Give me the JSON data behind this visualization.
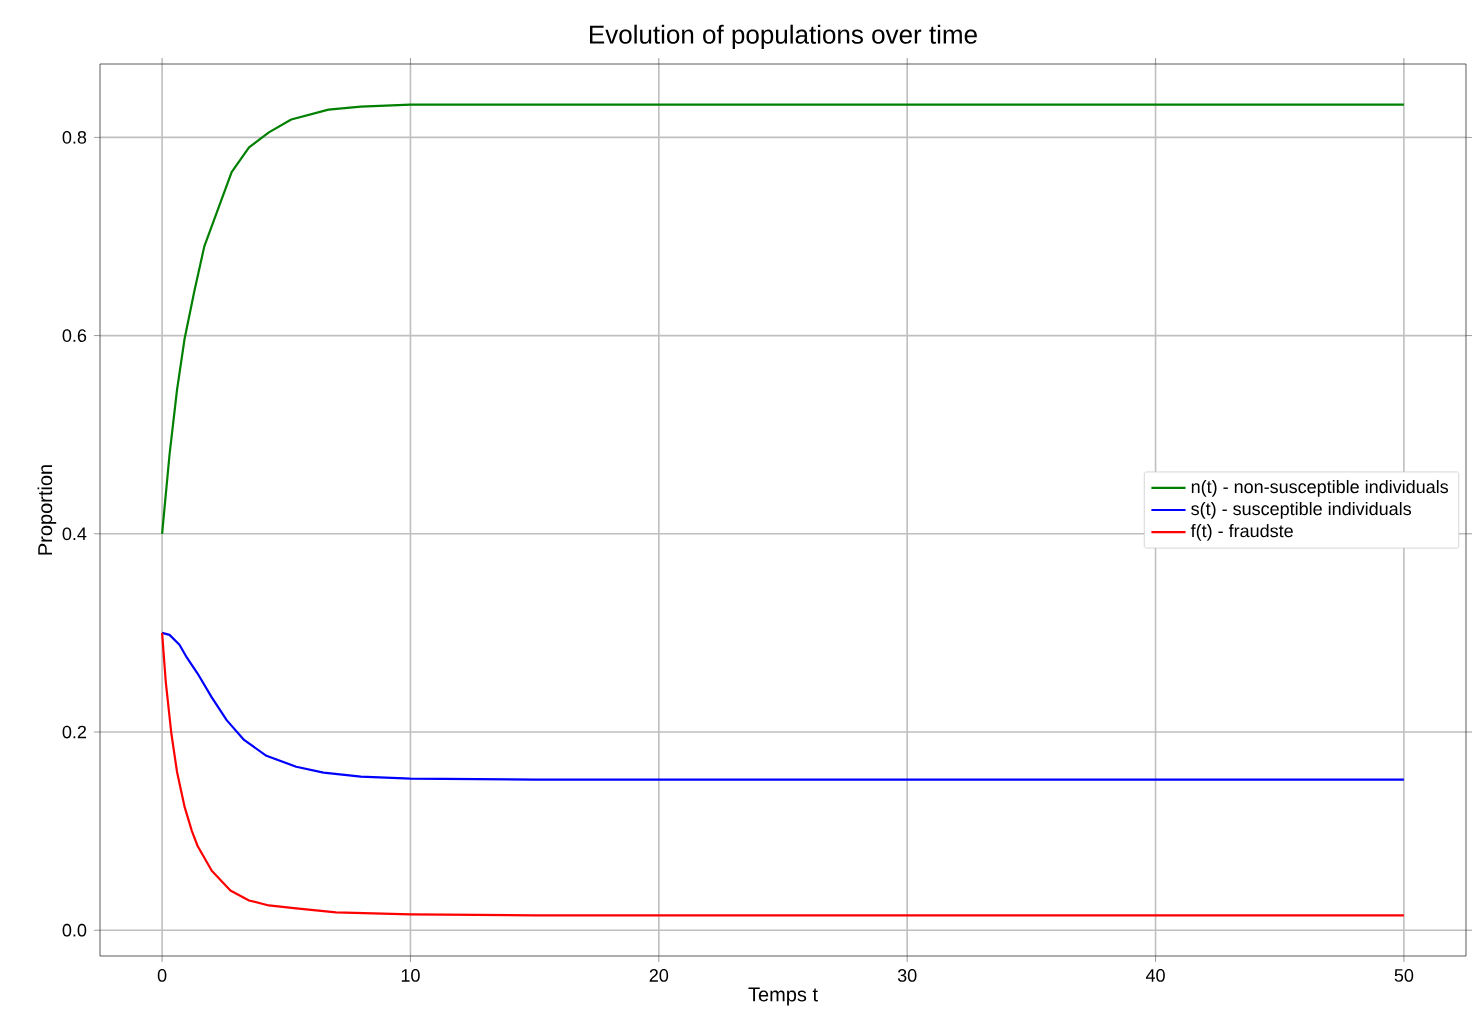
{
  "chart_data": {
    "type": "line",
    "title": "Evolution of populations over time",
    "xlabel": "Temps t",
    "ylabel": "Proportion",
    "xlim": [
      -2.5,
      52.5
    ],
    "ylim": [
      -0.026,
      0.874
    ],
    "xticks": [
      0,
      10,
      20,
      30,
      40,
      50
    ],
    "yticks": [
      {
        "value": 0,
        "label": "0.0"
      },
      0.2,
      0.4,
      0.6,
      0.8
    ],
    "grid": true,
    "legend": "right",
    "marker": "none",
    "line_style": "solid",
    "series": [
      {
        "name": "n(t) - non-susceptible  individuals",
        "color": "#008000",
        "x": [
          0,
          0.3,
          0.6,
          0.9,
          1.3,
          1.7,
          2.2,
          2.8,
          3.5,
          4.3,
          5.2,
          6.7,
          8,
          10,
          15,
          20,
          30,
          40,
          50
        ],
        "values": [
          0.4,
          0.48,
          0.545,
          0.596,
          0.645,
          0.69,
          0.724,
          0.765,
          0.79,
          0.805,
          0.818,
          0.828,
          0.831,
          0.833,
          0.833,
          0.833,
          0.833,
          0.833,
          0.833
        ]
      },
      {
        "name": "s(t) - susceptible  individuals",
        "color": "#0000ff",
        "x": [
          0,
          0.3,
          0.7,
          1.0,
          1.43,
          2.0,
          2.6,
          3.3,
          4.2,
          5.4,
          6.5,
          8,
          10,
          15,
          20,
          30,
          40,
          50
        ],
        "values": [
          0.3,
          0.298,
          0.288,
          0.275,
          0.259,
          0.235,
          0.212,
          0.192,
          0.176,
          0.165,
          0.159,
          0.155,
          0.153,
          0.152,
          0.152,
          0.152,
          0.152,
          0.152
        ]
      },
      {
        "name": "f(t) -  fraudste",
        "color": "#ff0000",
        "x": [
          0,
          0.15,
          0.37,
          0.6,
          0.9,
          1.2,
          1.43,
          2.0,
          2.75,
          3.5,
          4.3,
          5.4,
          7,
          10,
          15,
          20,
          30,
          40,
          50
        ],
        "values": [
          0.3,
          0.25,
          0.199,
          0.16,
          0.125,
          0.1,
          0.085,
          0.06,
          0.04,
          0.03,
          0.025,
          0.022,
          0.018,
          0.016,
          0.015,
          0.015,
          0.015,
          0.015,
          0.015
        ]
      }
    ]
  }
}
